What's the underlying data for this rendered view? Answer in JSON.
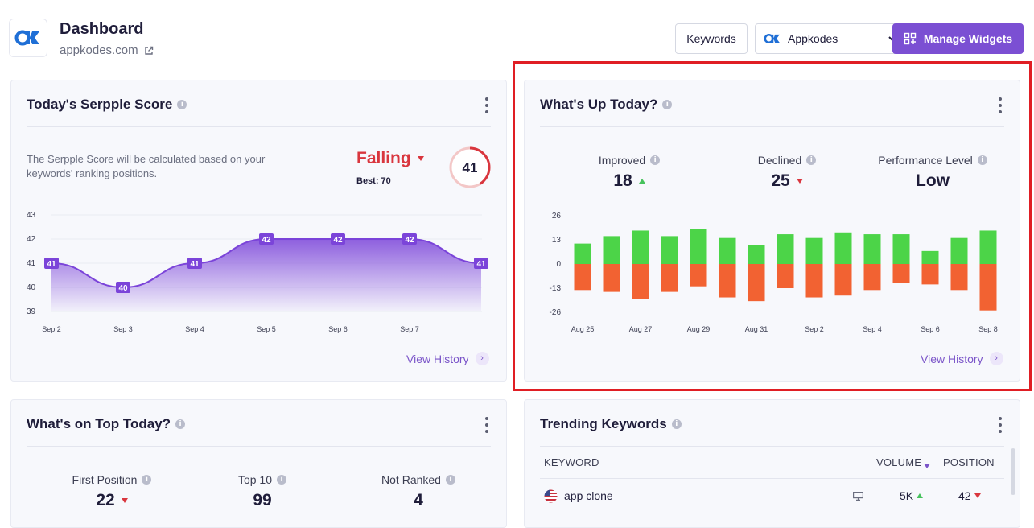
{
  "header": {
    "title": "Dashboard",
    "domain": "appkodes.com",
    "keywords_button": "Keywords",
    "account_name": "Appkodes",
    "manage_widgets": "Manage Widgets"
  },
  "serpple": {
    "title": "Today's Serpple Score",
    "description_line1": "The Serpple Score will be calculated based on your",
    "description_line2": "keywords' ranking positions.",
    "trend": "Falling",
    "best": "Best: 70",
    "score": "41",
    "score_fraction": 0.41,
    "view_history": "View History"
  },
  "whats_up": {
    "title": "What's Up Today?",
    "improved_label": "Improved",
    "improved_value": "18",
    "declined_label": "Declined",
    "declined_value": "25",
    "performance_label": "Performance Level",
    "performance_value": "Low",
    "view_history": "View History"
  },
  "on_top": {
    "title": "What's on Top Today?",
    "first_label": "First Position",
    "first_value": "22",
    "top10_label": "Top 10",
    "top10_value": "99",
    "notranked_label": "Not Ranked",
    "notranked_value": "4"
  },
  "trending": {
    "title": "Trending Keywords",
    "col_keyword": "KEYWORD",
    "col_volume": "VOLUME",
    "col_position": "POSITION",
    "rows": [
      {
        "keyword": "app clone",
        "volume": "5K",
        "position": "42"
      }
    ]
  },
  "chart_data": [
    {
      "type": "area",
      "categories": [
        "Sep 2",
        "Sep 3",
        "Sep 4",
        "Sep 5",
        "Sep 6",
        "Sep 7",
        ""
      ],
      "values": [
        41,
        40,
        41,
        42,
        42,
        42,
        41
      ],
      "yticks": [
        43,
        42,
        41,
        40,
        39
      ],
      "ylim": [
        39,
        43
      ],
      "color": "#7b44d9"
    },
    {
      "type": "bar",
      "categories": [
        "Aug 25",
        "Aug 26",
        "Aug 27",
        "Aug 28",
        "Aug 29",
        "Aug 30",
        "Aug 31",
        "Sep 1",
        "Sep 2",
        "Sep 3",
        "Sep 4",
        "Sep 5",
        "Sep 6",
        "Sep 7",
        "Sep 8"
      ],
      "tick_labels": [
        "Aug 25",
        "Aug 27",
        "Aug 29",
        "Aug 31",
        "Sep 2",
        "Sep 4",
        "Sep 6",
        "Sep 8"
      ],
      "yticks": [
        26,
        13,
        0,
        -13,
        -26
      ],
      "ylim": [
        -26,
        26
      ],
      "series": [
        {
          "name": "Improved",
          "color": "#4cd448",
          "values": [
            11,
            15,
            18,
            15,
            19,
            14,
            10,
            16,
            14,
            17,
            16,
            16,
            7,
            14,
            18
          ]
        },
        {
          "name": "Declined",
          "color": "#f26232",
          "values": [
            -14,
            -15,
            -19,
            -15,
            -12,
            -18,
            -20,
            -13,
            -18,
            -17,
            -14,
            -10,
            -11,
            -14,
            -25
          ]
        }
      ]
    }
  ]
}
